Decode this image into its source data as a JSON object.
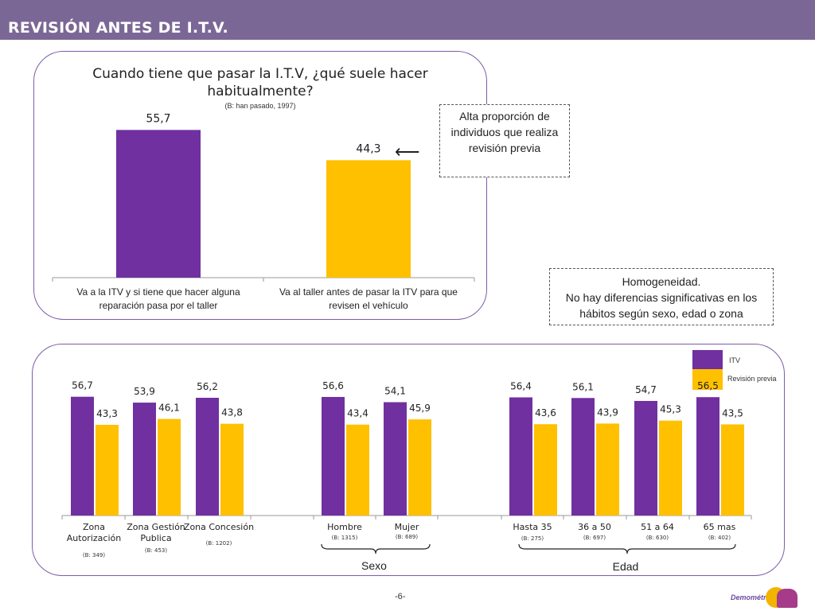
{
  "header": {
    "title": "REVISIÓN ANTES DE I.T.V."
  },
  "top_chart_title": "Cuando tiene que pasar la I.T.V, ¿qué suele hacer habitualmente?",
  "top_chart_base": "(B: han pasado, 1997)",
  "callout_top": "Alta proporción de individuos que realiza revisión previa",
  "callout_bottom_line1": "Homogeneidad.",
  "callout_bottom_line2": "No hay diferencias significativas en los hábitos según sexo, edad o zona",
  "legend": {
    "itv": "ITV",
    "revision": "Revisión previa"
  },
  "groups": {
    "sexo": "Sexo",
    "edad": "Edad"
  },
  "footer": {
    "page": "-6-",
    "logo": "Demométrica"
  },
  "colors": {
    "purple": "#7030a0",
    "yellow": "#ffc000",
    "header": "#7b6796"
  },
  "chart_data": [
    {
      "type": "bar",
      "title": "Cuando tiene que pasar la I.T.V, ¿qué suele hacer habitualmente?",
      "subtitle": "(B: han pasado, 1997)",
      "categories": [
        "Va a la ITV y si tiene que hacer alguna reparación pasa por el taller",
        "Va al taller antes de pasar la ITV para que revisen el vehículo"
      ],
      "values": [
        55.7,
        44.3
      ],
      "labels": [
        "55,7",
        "44,3"
      ],
      "colors": [
        "#7030a0",
        "#ffc000"
      ],
      "ylim": [
        0,
        60
      ]
    },
    {
      "type": "bar",
      "series": [
        {
          "name": "ITV",
          "values": [
            56.7,
            53.9,
            56.2,
            56.6,
            54.1,
            56.4,
            56.1,
            54.7,
            56.5
          ],
          "labels": [
            "56,7",
            "53,9",
            "56,2",
            "56,6",
            "54,1",
            "56,4",
            "56,1",
            "54,7",
            "56,5"
          ]
        },
        {
          "name": "Revisión previa",
          "values": [
            43.3,
            46.1,
            43.8,
            43.4,
            45.9,
            43.6,
            43.9,
            45.3,
            43.5
          ],
          "labels": [
            "43,3",
            "46,1",
            "43,8",
            "43,4",
            "45,9",
            "43,6",
            "43,9",
            "45,3",
            "43,5"
          ]
        }
      ],
      "categories": [
        "Zona Autorización",
        "Zona Gestión Publica",
        "Zona Concesión",
        "Hombre",
        "Mujer",
        "Hasta 35",
        "36 a 50",
        "51 a 64",
        "65 mas"
      ],
      "bases": [
        "(B: 349)",
        "(B: 453)",
        "(B: 1202)",
        "(B: 1315)",
        "(B: 689)",
        "(B: 275)",
        "(B: 697)",
        "(B: 630)",
        "(B: 402)"
      ],
      "ylim": [
        0,
        60
      ]
    }
  ]
}
